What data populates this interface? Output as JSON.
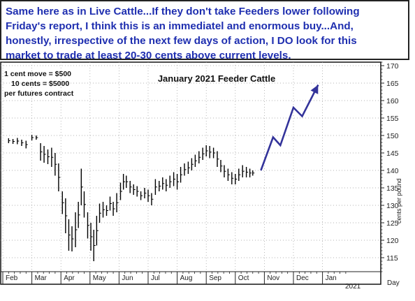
{
  "annotation": {
    "text": "Same here as in Live Cattle...If they don't take Feeders lower following Friday's report, I think this is an immediatel and enormous buy...And, honestly, irrespective of the next few days of action, I DO look for this market to trade at least 20-30 cents above current levels.",
    "lines": [
      "Same here as in Live Cattle...If they don't take Feeders lower following",
      "Friday's report, I think this is an immediatel and enormous buy...And,",
      "honestly, irrespective of the next few days of action, I DO look for this",
      "market to trade at least 20-30 cents above current levels."
    ],
    "color": "#1f2fb0"
  },
  "chart_data": {
    "type": "bar",
    "subtype": "OHLC price bars",
    "title": "January 2021 Feeder Cattle",
    "info": [
      "1 cent move = $500",
      "10 cents = $5000",
      "per futures contract"
    ],
    "ylabel": "cents per pound",
    "ylim": [
      111,
      171
    ],
    "yticks": [
      115,
      120,
      125,
      130,
      135,
      140,
      145,
      150,
      155,
      160,
      165,
      170
    ],
    "xlabel": "Day",
    "months": [
      "Feb",
      "Mar",
      "Apr",
      "May",
      "Jun",
      "Jul",
      "Aug",
      "Sep",
      "Oct",
      "Nov",
      "Dec",
      "Jan"
    ],
    "year_label": "2021",
    "grid": true,
    "series": [
      {
        "points": [
          {
            "t": 0.2,
            "h": 149.2,
            "l": 147.8
          },
          {
            "t": 0.35,
            "h": 149.0,
            "l": 147.6
          },
          {
            "t": 0.5,
            "h": 149.3,
            "l": 147.5
          },
          {
            "t": 0.65,
            "h": 148.8,
            "l": 147.0
          },
          {
            "t": 0.8,
            "h": 148.5,
            "l": 146.3
          },
          {
            "t": 1.0,
            "h": 150.2,
            "l": 148.6
          },
          {
            "t": 1.15,
            "h": 150.0,
            "l": 148.8
          },
          {
            "t": 1.3,
            "h": 147.8,
            "l": 142.8
          },
          {
            "t": 1.42,
            "h": 147.0,
            "l": 142.2
          },
          {
            "t": 1.55,
            "h": 146.0,
            "l": 141.8
          },
          {
            "t": 1.68,
            "h": 146.5,
            "l": 141.0
          },
          {
            "t": 1.8,
            "h": 145.0,
            "l": 138.5
          },
          {
            "t": 1.92,
            "h": 142.0,
            "l": 134.0
          },
          {
            "t": 2.05,
            "h": 134.0,
            "l": 127.5
          },
          {
            "t": 2.16,
            "h": 132.0,
            "l": 122.0
          },
          {
            "t": 2.27,
            "h": 126.0,
            "l": 117.0
          },
          {
            "t": 2.38,
            "h": 124.0,
            "l": 116.8
          },
          {
            "t": 2.5,
            "h": 128.0,
            "l": 118.0
          },
          {
            "t": 2.6,
            "h": 131.0,
            "l": 123.5
          },
          {
            "t": 2.7,
            "h": 140.5,
            "l": 130.0
          },
          {
            "t": 2.8,
            "h": 134.0,
            "l": 126.5
          },
          {
            "t": 2.92,
            "h": 128.0,
            "l": 120.5
          },
          {
            "t": 3.03,
            "h": 125.0,
            "l": 117.0
          },
          {
            "t": 3.13,
            "h": 123.0,
            "l": 114.0
          },
          {
            "t": 3.23,
            "h": 127.0,
            "l": 118.5
          },
          {
            "t": 3.33,
            "h": 130.5,
            "l": 125.0
          },
          {
            "t": 3.45,
            "h": 131.0,
            "l": 126.5
          },
          {
            "t": 3.57,
            "h": 130.0,
            "l": 127.0
          },
          {
            "t": 3.69,
            "h": 132.5,
            "l": 128.5
          },
          {
            "t": 3.8,
            "h": 131.0,
            "l": 127.0
          },
          {
            "t": 3.92,
            "h": 133.5,
            "l": 128.0
          },
          {
            "t": 4.05,
            "h": 136.5,
            "l": 131.5
          },
          {
            "t": 4.15,
            "h": 139.0,
            "l": 134.5
          },
          {
            "t": 4.25,
            "h": 138.5,
            "l": 135.0
          },
          {
            "t": 4.38,
            "h": 137.0,
            "l": 133.5
          },
          {
            "t": 4.5,
            "h": 136.0,
            "l": 133.0
          },
          {
            "t": 4.62,
            "h": 135.5,
            "l": 132.5
          },
          {
            "t": 4.75,
            "h": 134.0,
            "l": 131.5
          },
          {
            "t": 4.88,
            "h": 135.0,
            "l": 132.0
          },
          {
            "t": 5.0,
            "h": 134.5,
            "l": 131.0
          },
          {
            "t": 5.12,
            "h": 133.5,
            "l": 130.0
          },
          {
            "t": 5.25,
            "h": 137.5,
            "l": 133.0
          },
          {
            "t": 5.38,
            "h": 137.0,
            "l": 134.0
          },
          {
            "t": 5.5,
            "h": 138.0,
            "l": 134.5
          },
          {
            "t": 5.62,
            "h": 137.5,
            "l": 134.0
          },
          {
            "t": 5.75,
            "h": 138.5,
            "l": 135.0
          },
          {
            "t": 5.88,
            "h": 139.5,
            "l": 135.5
          },
          {
            "t": 6.0,
            "h": 139.0,
            "l": 134.5
          },
          {
            "t": 6.12,
            "h": 141.0,
            "l": 136.5
          },
          {
            "t": 6.25,
            "h": 142.0,
            "l": 138.5
          },
          {
            "t": 6.38,
            "h": 142.5,
            "l": 139.0
          },
          {
            "t": 6.5,
            "h": 143.5,
            "l": 140.0
          },
          {
            "t": 6.62,
            "h": 144.5,
            "l": 141.0
          },
          {
            "t": 6.75,
            "h": 145.5,
            "l": 142.0
          },
          {
            "t": 6.88,
            "h": 146.5,
            "l": 143.0
          },
          {
            "t": 7.0,
            "h": 147.2,
            "l": 144.0
          },
          {
            "t": 7.12,
            "h": 147.0,
            "l": 143.5
          },
          {
            "t": 7.25,
            "h": 146.5,
            "l": 143.5
          },
          {
            "t": 7.38,
            "h": 145.5,
            "l": 141.0
          },
          {
            "t": 7.5,
            "h": 143.0,
            "l": 139.5
          },
          {
            "t": 7.62,
            "h": 141.5,
            "l": 138.0
          },
          {
            "t": 7.75,
            "h": 140.5,
            "l": 137.0
          },
          {
            "t": 7.88,
            "h": 139.5,
            "l": 136.0
          },
          {
            "t": 8.0,
            "h": 139.0,
            "l": 136.0
          },
          {
            "t": 8.12,
            "h": 140.5,
            "l": 137.0
          },
          {
            "t": 8.25,
            "h": 141.5,
            "l": 138.0
          },
          {
            "t": 8.38,
            "h": 141.0,
            "l": 138.0
          },
          {
            "t": 8.5,
            "h": 140.5,
            "l": 138.0
          },
          {
            "t": 8.6,
            "h": 140.0,
            "l": 138.5
          }
        ]
      }
    ],
    "forecast_arrow": {
      "path": [
        {
          "t": 8.88,
          "v": 140.0
        },
        {
          "t": 9.3,
          "v": 149.5
        },
        {
          "t": 9.55,
          "v": 147.2
        },
        {
          "t": 10.0,
          "v": 158.0
        },
        {
          "t": 10.3,
          "v": 155.5
        },
        {
          "t": 10.85,
          "v": 164.5
        }
      ],
      "color": "#33339a"
    }
  }
}
